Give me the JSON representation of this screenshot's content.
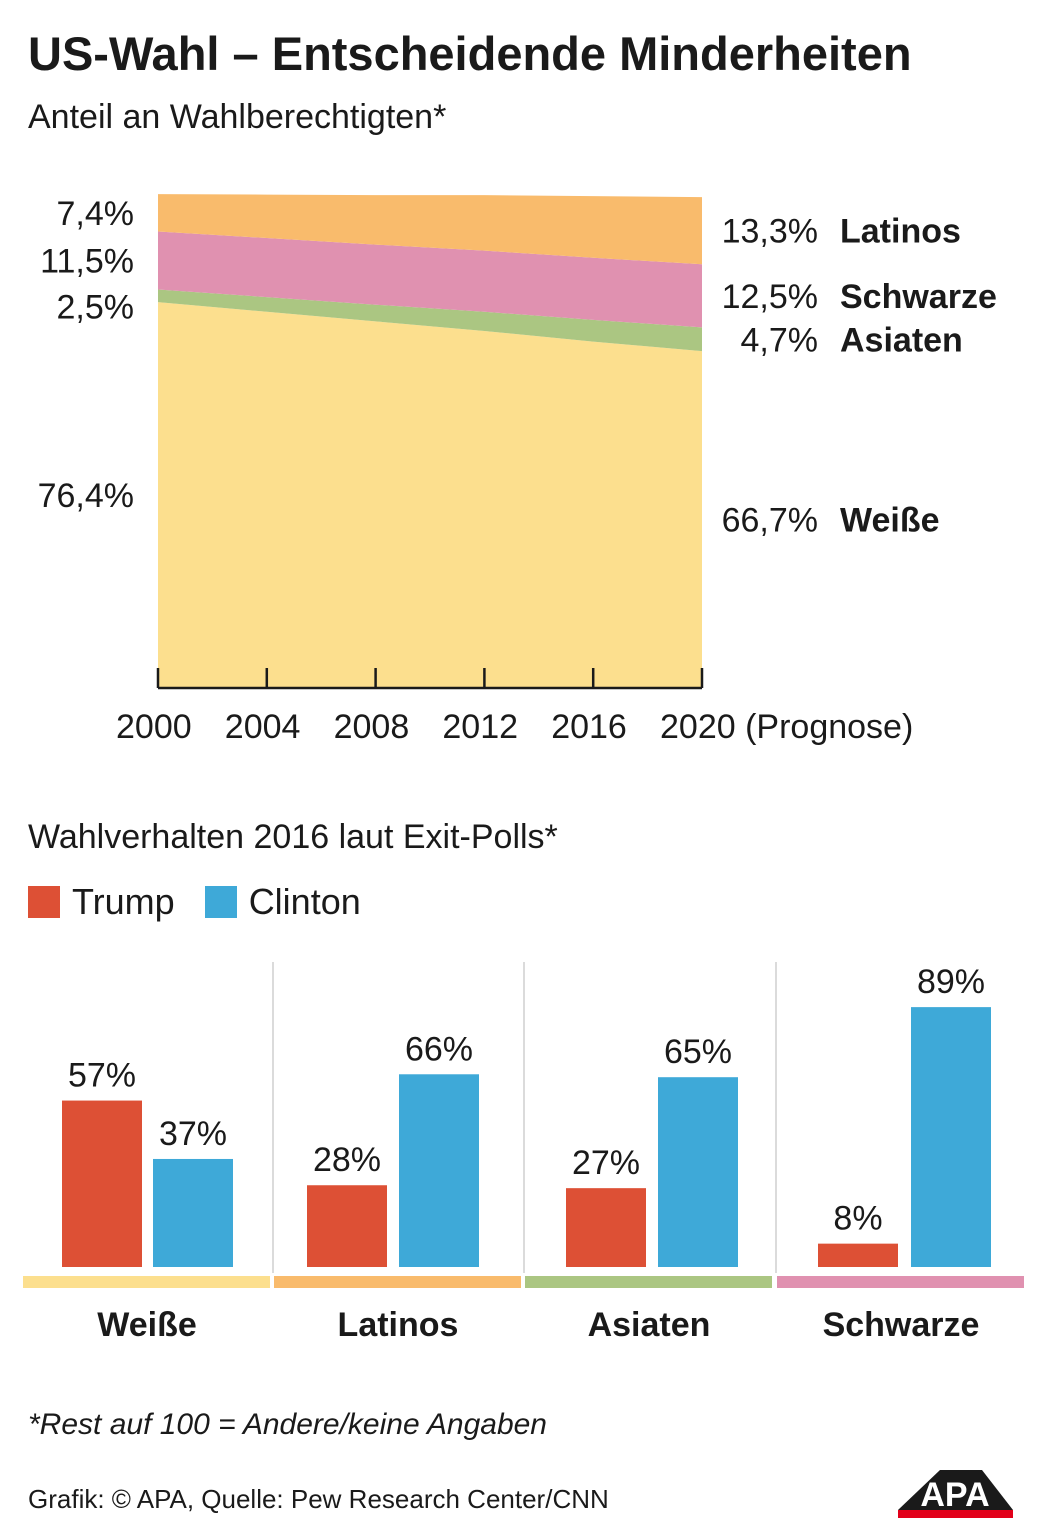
{
  "title": "US-Wahl – Entscheidende Minderheiten",
  "subtitle": "Anteil an Wahlberechtigten*",
  "chart_data": [
    {
      "type": "area",
      "stacked": true,
      "x": [
        2000,
        2004,
        2008,
        2012,
        2016,
        2020
      ],
      "x_tick_labels": [
        "2000",
        "2004",
        "2008",
        "2012",
        "2016",
        "2020 (Prognose)"
      ],
      "series": [
        {
          "name": "Weiße",
          "color": "#fcdf8e",
          "values": [
            76.4,
            74.5,
            72.6,
            70.7,
            68.6,
            66.7
          ],
          "start_label": "76,4%",
          "end_label": "66,7%"
        },
        {
          "name": "Asiaten",
          "color": "#abc682",
          "values": [
            2.5,
            2.9,
            3.3,
            3.8,
            4.3,
            4.7
          ],
          "start_label": "2,5%",
          "end_label": "4,7%"
        },
        {
          "name": "Schwarze",
          "color": "#e091b0",
          "values": [
            11.5,
            11.7,
            11.9,
            12.1,
            12.3,
            12.5
          ],
          "start_label": "11,5%",
          "end_label": "12,5%"
        },
        {
          "name": "Latinos",
          "color": "#f9bb6c",
          "values": [
            7.4,
            8.6,
            9.8,
            11.0,
            12.2,
            13.3
          ],
          "start_label": "7,4%",
          "end_label": "13,3%"
        }
      ],
      "grid": false,
      "legend": "right"
    },
    {
      "type": "bar",
      "title": "Wahlverhalten 2016 laut Exit-Polls*",
      "categories": [
        "Weiße",
        "Latinos",
        "Asiaten",
        "Schwarze"
      ],
      "category_colors": [
        "#fcdf8e",
        "#f9bb6c",
        "#abc682",
        "#e091b0"
      ],
      "series": [
        {
          "name": "Trump",
          "color": "#dd5035",
          "values": [
            57,
            28,
            27,
            8
          ],
          "labels": [
            "57%",
            "28%",
            "27%",
            "8%"
          ]
        },
        {
          "name": "Clinton",
          "color": "#3ea9d8",
          "values": [
            37,
            66,
            65,
            89
          ],
          "labels": [
            "37%",
            "66%",
            "65%",
            "89%"
          ]
        }
      ],
      "ylim": [
        0,
        100
      ],
      "legend": "top-left"
    }
  ],
  "footnote": "*Rest auf 100 = Andere/keine Angaben",
  "source": "Grafik: © APA, Quelle: Pew Research Center/CNN",
  "logo": "APA"
}
